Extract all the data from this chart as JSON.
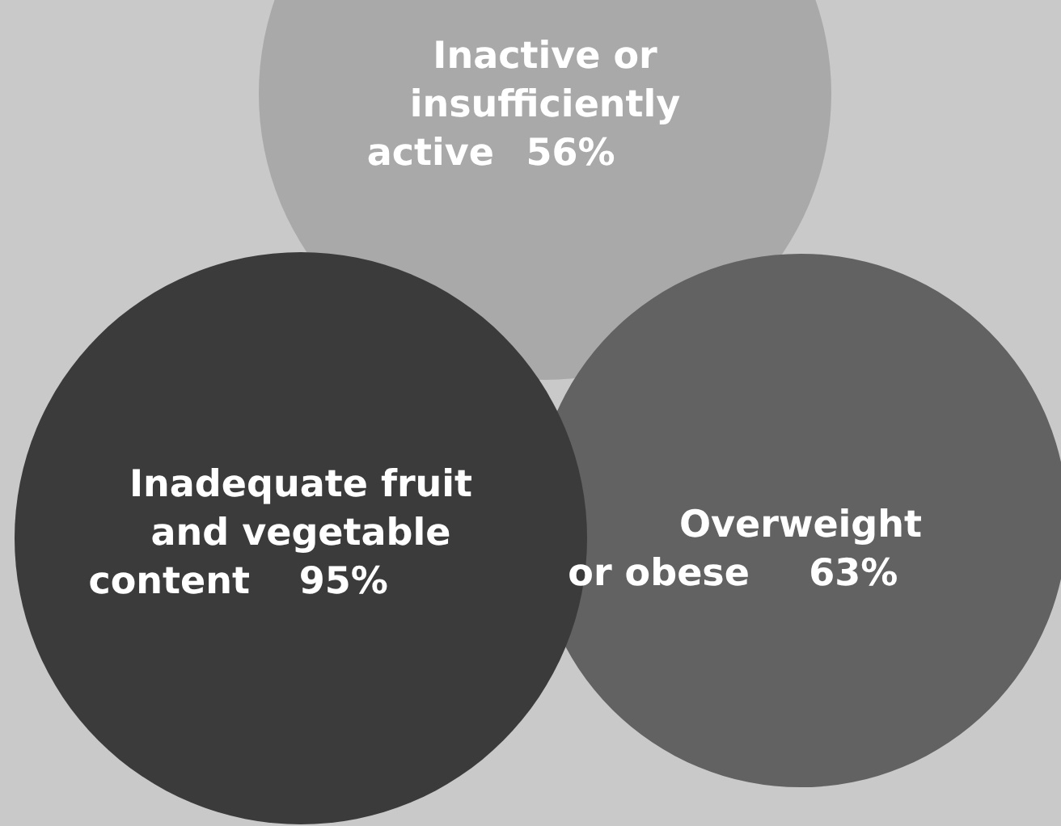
{
  "chart_data": {
    "type": "other",
    "categories": [
      "Inactive or insufficiently active",
      "Inadequate fruit and vegetable content",
      "Overweight or obese"
    ],
    "values": [
      56,
      95,
      63
    ],
    "value_labels": [
      "56%",
      "95%",
      "63%"
    ],
    "colors": [
      "#a9a9a9",
      "#3b3b3b",
      "#626262"
    ]
  }
}
